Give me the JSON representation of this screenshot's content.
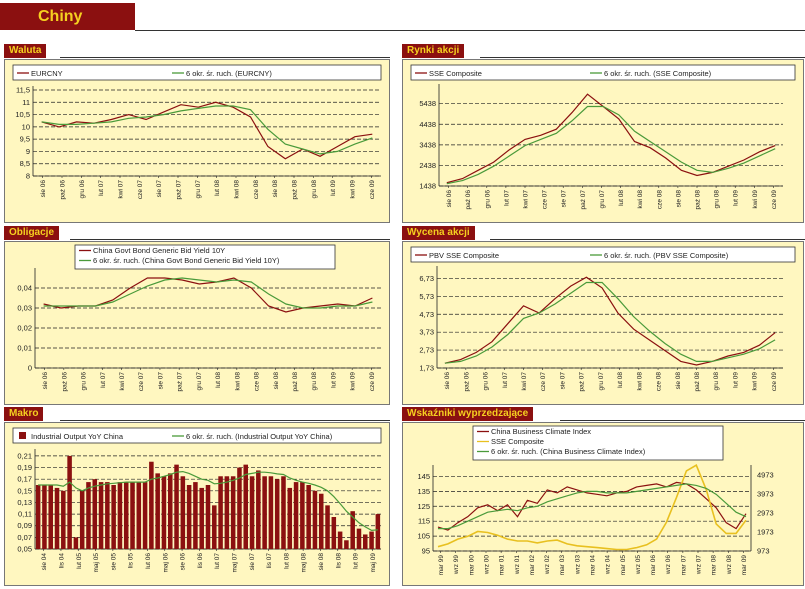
{
  "banner": {
    "title": "Chiny"
  },
  "colors": {
    "series_primary": "#8b1010",
    "series_ma": "#4a9a3a",
    "series_sse": "#e8c020",
    "panel_bg": "#fff7c0",
    "title_bg": "#8b1010",
    "title_fg": "#f5d020"
  },
  "chart_data": [
    {
      "id": "waluta",
      "panel_title": "Waluta",
      "type": "line",
      "x_ticks": [
        "sie 06",
        "paź 06",
        "gru 06",
        "lut 07",
        "kwi 07",
        "cze 07",
        "sie 07",
        "paź 07",
        "gru 07",
        "lut 08",
        "kwi 08",
        "cze 08",
        "sie 08",
        "paź 08",
        "gru 08",
        "lut 09",
        "kwi 09",
        "cze 09"
      ],
      "y_ticks": [
        "8",
        "8,5",
        "9",
        "9,5",
        "10",
        "10,5",
        "11",
        "11,5"
      ],
      "ylim": [
        8,
        11.5
      ],
      "series": [
        {
          "name": "EURCNY",
          "values": [
            10.2,
            10.0,
            10.2,
            10.15,
            10.3,
            10.5,
            10.3,
            10.6,
            10.9,
            10.8,
            11.0,
            10.8,
            10.4,
            9.2,
            8.7,
            9.1,
            8.8,
            9.2,
            9.6,
            9.7
          ]
        },
        {
          "name": "6 okr. śr. ruch. (EURCNY)",
          "values": [
            10.2,
            10.1,
            10.1,
            10.15,
            10.2,
            10.35,
            10.4,
            10.5,
            10.65,
            10.75,
            10.85,
            10.85,
            10.7,
            9.9,
            9.3,
            9.1,
            8.9,
            9.0,
            9.3,
            9.55
          ]
        }
      ]
    },
    {
      "id": "rynki",
      "panel_title": "Rynki akcji",
      "type": "line",
      "x_ticks": [
        "sie 06",
        "paź 06",
        "gru 06",
        "lut 07",
        "kwi 07",
        "cze 07",
        "sie 07",
        "paź 07",
        "gru 07",
        "lut 08",
        "kwi 08",
        "cze 08",
        "sie 08",
        "paź 08",
        "gru 08",
        "lut 09",
        "kwi 09",
        "cze 09"
      ],
      "y_ticks": [
        "1438",
        "2438",
        "3438",
        "4438",
        "5438"
      ],
      "ylim": [
        1438,
        6200
      ],
      "series": [
        {
          "name": "SSE Composite",
          "values": [
            1600,
            1800,
            2200,
            2600,
            3200,
            3700,
            3900,
            4200,
            5000,
            5900,
            5300,
            4700,
            3600,
            3300,
            2800,
            2200,
            1950,
            2100,
            2400,
            2700,
            3100,
            3400
          ]
        },
        {
          "name": "6 okr. śr. ruch. (SSE Composite)",
          "values": [
            1550,
            1700,
            2000,
            2400,
            2900,
            3400,
            3700,
            4000,
            4600,
            5300,
            5300,
            4900,
            4100,
            3600,
            3100,
            2600,
            2200,
            2100,
            2300,
            2550,
            2900,
            3250
          ]
        }
      ]
    },
    {
      "id": "obligacje",
      "panel_title": "Obligacje",
      "type": "line",
      "x_ticks": [
        "sie 06",
        "paź 06",
        "gru 06",
        "lut 07",
        "kwi 07",
        "cze 07",
        "sie 07",
        "paź 07",
        "gru 07",
        "lut 08",
        "kwi 08",
        "cze 08",
        "sie 08",
        "paź 08",
        "gru 08",
        "lut 09",
        "kwi 09",
        "cze 09"
      ],
      "y_ticks": [
        "0",
        "0,01",
        "0,02",
        "0,03",
        "0,04"
      ],
      "ylim": [
        0,
        0.048
      ],
      "series": [
        {
          "name": "China Govt Bond Generic Bid Yield 10Y",
          "values": [
            0.032,
            0.03,
            0.031,
            0.031,
            0.034,
            0.04,
            0.045,
            0.045,
            0.044,
            0.042,
            0.043,
            0.045,
            0.04,
            0.031,
            0.028,
            0.03,
            0.031,
            0.032,
            0.031,
            0.035
          ]
        },
        {
          "name": "6 okr. śr. ruch. (China Govt Bond Generic Bid Yield 10Y)",
          "values": [
            0.031,
            0.031,
            0.031,
            0.031,
            0.033,
            0.037,
            0.041,
            0.044,
            0.045,
            0.044,
            0.043,
            0.044,
            0.043,
            0.037,
            0.032,
            0.03,
            0.03,
            0.031,
            0.031,
            0.033
          ]
        }
      ]
    },
    {
      "id": "wycena",
      "panel_title": "Wycena akcji",
      "type": "line",
      "x_ticks": [
        "sie 06",
        "paź 06",
        "gru 06",
        "lut 07",
        "kwi 07",
        "cze 07",
        "sie 07",
        "paź 07",
        "gru 07",
        "lut 08",
        "kwi 08",
        "cze 08",
        "sie 08",
        "paź 08",
        "gru 08",
        "lut 09",
        "kwi 09",
        "cze 09"
      ],
      "y_ticks": [
        "1,73",
        "2,73",
        "3,73",
        "4,73",
        "5,73",
        "6,73"
      ],
      "ylim": [
        1.73,
        7.2
      ],
      "series": [
        {
          "name": "PBV SSE Composite",
          "values": [
            2.0,
            2.2,
            2.6,
            3.2,
            4.2,
            5.2,
            4.8,
            5.6,
            6.3,
            6.8,
            6.2,
            4.8,
            3.9,
            3.3,
            2.7,
            2.1,
            1.9,
            2.1,
            2.4,
            2.6,
            3.0,
            3.7
          ]
        },
        {
          "name": "6 okr. śr. ruch. (PBV SSE Composite)",
          "values": [
            2.0,
            2.1,
            2.4,
            2.9,
            3.6,
            4.5,
            4.8,
            5.3,
            5.9,
            6.5,
            6.5,
            5.6,
            4.6,
            3.8,
            3.1,
            2.5,
            2.1,
            2.1,
            2.3,
            2.5,
            2.8,
            3.3
          ]
        }
      ]
    },
    {
      "id": "makro",
      "panel_title": "Makro",
      "type": "bar",
      "x_ticks": [
        "sie 04",
        "lis 04",
        "lut 05",
        "maj 05",
        "sie 05",
        "lis 05",
        "lut 06",
        "maj 06",
        "sie 06",
        "lis 06",
        "lut 07",
        "maj 07",
        "sie 07",
        "lis 07",
        "lut 08",
        "maj 08",
        "sie 08",
        "lis 08",
        "lut 09",
        "maj 09"
      ],
      "y_ticks": [
        "0,05",
        "0,07",
        "0,09",
        "0,11",
        "0,13",
        "0,15",
        "0,17",
        "0,19",
        "0,21"
      ],
      "ylim": [
        0.05,
        0.215
      ],
      "series": [
        {
          "name": "Industrial Output YoY China",
          "values": [
            0.16,
            0.16,
            0.16,
            0.155,
            0.15,
            0.21,
            0.07,
            0.15,
            0.165,
            0.17,
            0.165,
            0.165,
            0.16,
            0.165,
            0.165,
            0.165,
            0.165,
            0.165,
            0.2,
            0.18,
            0.175,
            0.18,
            0.195,
            0.175,
            0.16,
            0.165,
            0.155,
            0.16,
            0.125,
            0.175,
            0.175,
            0.175,
            0.19,
            0.195,
            0.175,
            0.185,
            0.175,
            0.175,
            0.17,
            0.175,
            0.155,
            0.165,
            0.165,
            0.16,
            0.15,
            0.145,
            0.125,
            0.105,
            0.08,
            0.065,
            0.115,
            0.085,
            0.075,
            0.08,
            0.11
          ]
        },
        {
          "name": "6 okr. śr. ruch. (Industrial Output YoY China)",
          "values": [
            0.16,
            0.16,
            0.16,
            0.16,
            0.158,
            0.165,
            0.155,
            0.15,
            0.155,
            0.158,
            0.16,
            0.162,
            0.163,
            0.164,
            0.165,
            0.165,
            0.165,
            0.165,
            0.17,
            0.172,
            0.175,
            0.178,
            0.182,
            0.183,
            0.18,
            0.175,
            0.17,
            0.168,
            0.162,
            0.163,
            0.165,
            0.168,
            0.172,
            0.178,
            0.18,
            0.182,
            0.182,
            0.181,
            0.179,
            0.178,
            0.172,
            0.168,
            0.165,
            0.163,
            0.16,
            0.156,
            0.15,
            0.14,
            0.128,
            0.115,
            0.105,
            0.095,
            0.088,
            0.082,
            0.083
          ]
        }
      ]
    },
    {
      "id": "wskazniki",
      "panel_title": "Wskaźniki wyprzedzające",
      "type": "line",
      "x_ticks": [
        "mar 99",
        "wrz 99",
        "mar 00",
        "wrz 00",
        "mar 01",
        "wrz 01",
        "mar 02",
        "wrz 02",
        "mar 03",
        "wrz 03",
        "mar 04",
        "wrz 04",
        "mar 05",
        "wrz 05",
        "mar 06",
        "wrz 06",
        "mar 07",
        "wrz 07",
        "mar 08",
        "wrz 08",
        "mar 09"
      ],
      "y_ticks": [
        "95",
        "105",
        "115",
        "125",
        "135",
        "145"
      ],
      "ylim": [
        95,
        150
      ],
      "y2_ticks": [
        "973",
        "1973",
        "2973",
        "3973",
        "4973"
      ],
      "y2lim": [
        973,
        5300
      ],
      "series": [
        {
          "name": "China Business Climate Index",
          "axis": "left",
          "values": [
            111,
            109,
            114,
            118,
            124,
            126,
            122,
            126,
            118,
            129,
            127,
            136,
            134,
            138,
            136,
            134,
            133,
            132,
            134,
            135,
            138,
            139,
            140,
            138,
            141,
            140,
            136,
            130,
            124,
            114,
            110,
            120
          ]
        },
        {
          "name": "SSE Composite",
          "axis": "right",
          "values": [
            1200,
            1350,
            1600,
            1750,
            2000,
            1950,
            1800,
            1600,
            1500,
            1500,
            1400,
            1500,
            1550,
            1350,
            1250,
            1200,
            1150,
            1100,
            1050,
            1050,
            1150,
            1300,
            1600,
            2500,
            3800,
            5200,
            5500,
            4200,
            2400,
            1900,
            1900,
            2600
          ]
        },
        {
          "name": "6 okr. śr. ruch. (China Business Climate Index)",
          "axis": "left",
          "values": [
            110,
            110,
            112,
            115,
            118,
            121,
            122,
            123,
            122,
            124,
            125,
            128,
            130,
            132,
            134,
            135,
            135,
            134,
            134,
            134,
            135,
            136,
            137,
            138,
            139,
            140,
            139,
            137,
            133,
            127,
            121,
            118
          ]
        }
      ]
    }
  ]
}
